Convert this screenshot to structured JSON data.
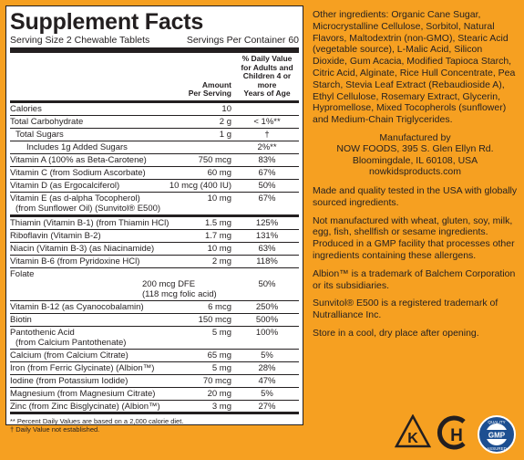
{
  "panel": {
    "title": "Supplement Facts",
    "serving_size": "Serving Size 2 Chewable Tablets",
    "servings_per_container": "Servings Per Container 60",
    "col_amount": [
      "Amount",
      "Per Serving"
    ],
    "col_dv": [
      "% Daily Value",
      "for Adults and",
      "Children 4 or more",
      "Years of Age"
    ],
    "rows": [
      {
        "name": "Calories",
        "amount": "10",
        "dv": ""
      },
      {
        "name": "Total Carbohydrate",
        "amount": "2 g",
        "dv": "< 1%**"
      },
      {
        "name": "Total Sugars",
        "amount": "1 g",
        "dv": "†"
      },
      {
        "name": "Includes 1g Added Sugars",
        "amount": "",
        "dv": "2%**"
      },
      {
        "name": "Vitamin A (100% as Beta-Carotene)",
        "amount": "750 mcg",
        "dv": "83%"
      },
      {
        "name": "Vitamin C (from Sodium Ascorbate)",
        "amount": "60 mg",
        "dv": "67%"
      },
      {
        "name": "Vitamin D (as Ergocalciferol)",
        "amount": "10 mcg (400 IU)",
        "dv": "50%"
      },
      {
        "name": "Vitamin E (as d-alpha Tocopherol)",
        "name2": "(from Sunflower Oil) (Sunvitol® E500)",
        "amount": "10 mg",
        "dv": "67%"
      },
      {
        "name": "Thiamin (Vitamin B-1) (from Thiamin HCl)",
        "amount": "1.5 mg",
        "dv": "125%"
      },
      {
        "name": "Riboflavin (Vitamin B-2)",
        "amount": "1.7 mg",
        "dv": "131%"
      },
      {
        "name": "Niacin (Vitamin B-3) (as Niacinamide)",
        "amount": "10 mg",
        "dv": "63%"
      },
      {
        "name": "Vitamin B-6 (from Pyridoxine HCl)",
        "amount": "2 mg",
        "dv": "118%"
      },
      {
        "name": "Folate",
        "amount": "200 mcg DFE",
        "amount2": "(118 mcg folic acid)",
        "dv": "50%"
      },
      {
        "name": "Vitamin B-12 (as Cyanocobalamin)",
        "amount": "6 mcg",
        "dv": "250%"
      },
      {
        "name": "Biotin",
        "amount": "150 mcg",
        "dv": "500%"
      },
      {
        "name": "Pantothenic Acid",
        "name2": "(from Calcium Pantothenate)",
        "amount": "5 mg",
        "dv": "100%"
      },
      {
        "name": "Calcium (from Calcium Citrate)",
        "amount": "65 mg",
        "dv": "5%"
      },
      {
        "name": "Iron (from Ferric Glycinate) (Albion™)",
        "amount": "5 mg",
        "dv": "28%"
      },
      {
        "name": "Iodine (from Potassium Iodide)",
        "amount": "70 mcg",
        "dv": "47%"
      },
      {
        "name": "Magnesium (from Magnesium Citrate)",
        "amount": "20 mg",
        "dv": "5%"
      },
      {
        "name": "Zinc (from Zinc Bisglycinate) (Albion™)",
        "amount": "3 mg",
        "dv": "27%"
      }
    ],
    "footnote1": "** Percent Daily Values are based on a 2,000 calorie diet.",
    "footnote2": "† Daily Value not established."
  },
  "right": {
    "other_ingredients": "Other ingredients: Organic Cane Sugar, Microcrystalline Cellulose, Sorbitol, Natural Flavors, Maltodextrin (non-GMO), Stearic Acid (vegetable source), L-Malic Acid, Silicon Dioxide, Gum Acacia, Modified Tapioca Starch, Citric Acid, Alginate, Rice Hull Concentrate, Pea Starch, Stevia Leaf Extract (Rebaudioside A), Ethyl Cellulose, Rosemary Extract, Glycerin, Hypromellose, Mixed Tocopherols (sunflower) and Medium-Chain Triglycerides.",
    "manufactured_by": "Manufactured by",
    "company": "NOW FOODS, 395 S. Glen Ellyn Rd.",
    "city": "Bloomingdale, IL 60108, USA",
    "website": "nowkidsproducts.com",
    "made_in_usa": "Made and quality tested in the USA with globally sourced ingredients.",
    "allergens": "Not manufactured with wheat, gluten, soy, milk, egg, fish, shellfish or sesame ingredients. Produced in a GMP facility that processes other ingredients containing these allergens.",
    "albion": "Albion™ is a trademark of Balchem Corporation or its subsidiaries.",
    "sunvitol": "Sunvitol® E500 is a registered trademark of Nutralliance Inc.",
    "storage": "Store in a cool, dry place after opening."
  },
  "logos": {
    "kosher": "K",
    "halal": "H",
    "gmp_top": "QUALITY",
    "gmp_mid": "GMP",
    "gmp_bottom": "ASSURED"
  }
}
